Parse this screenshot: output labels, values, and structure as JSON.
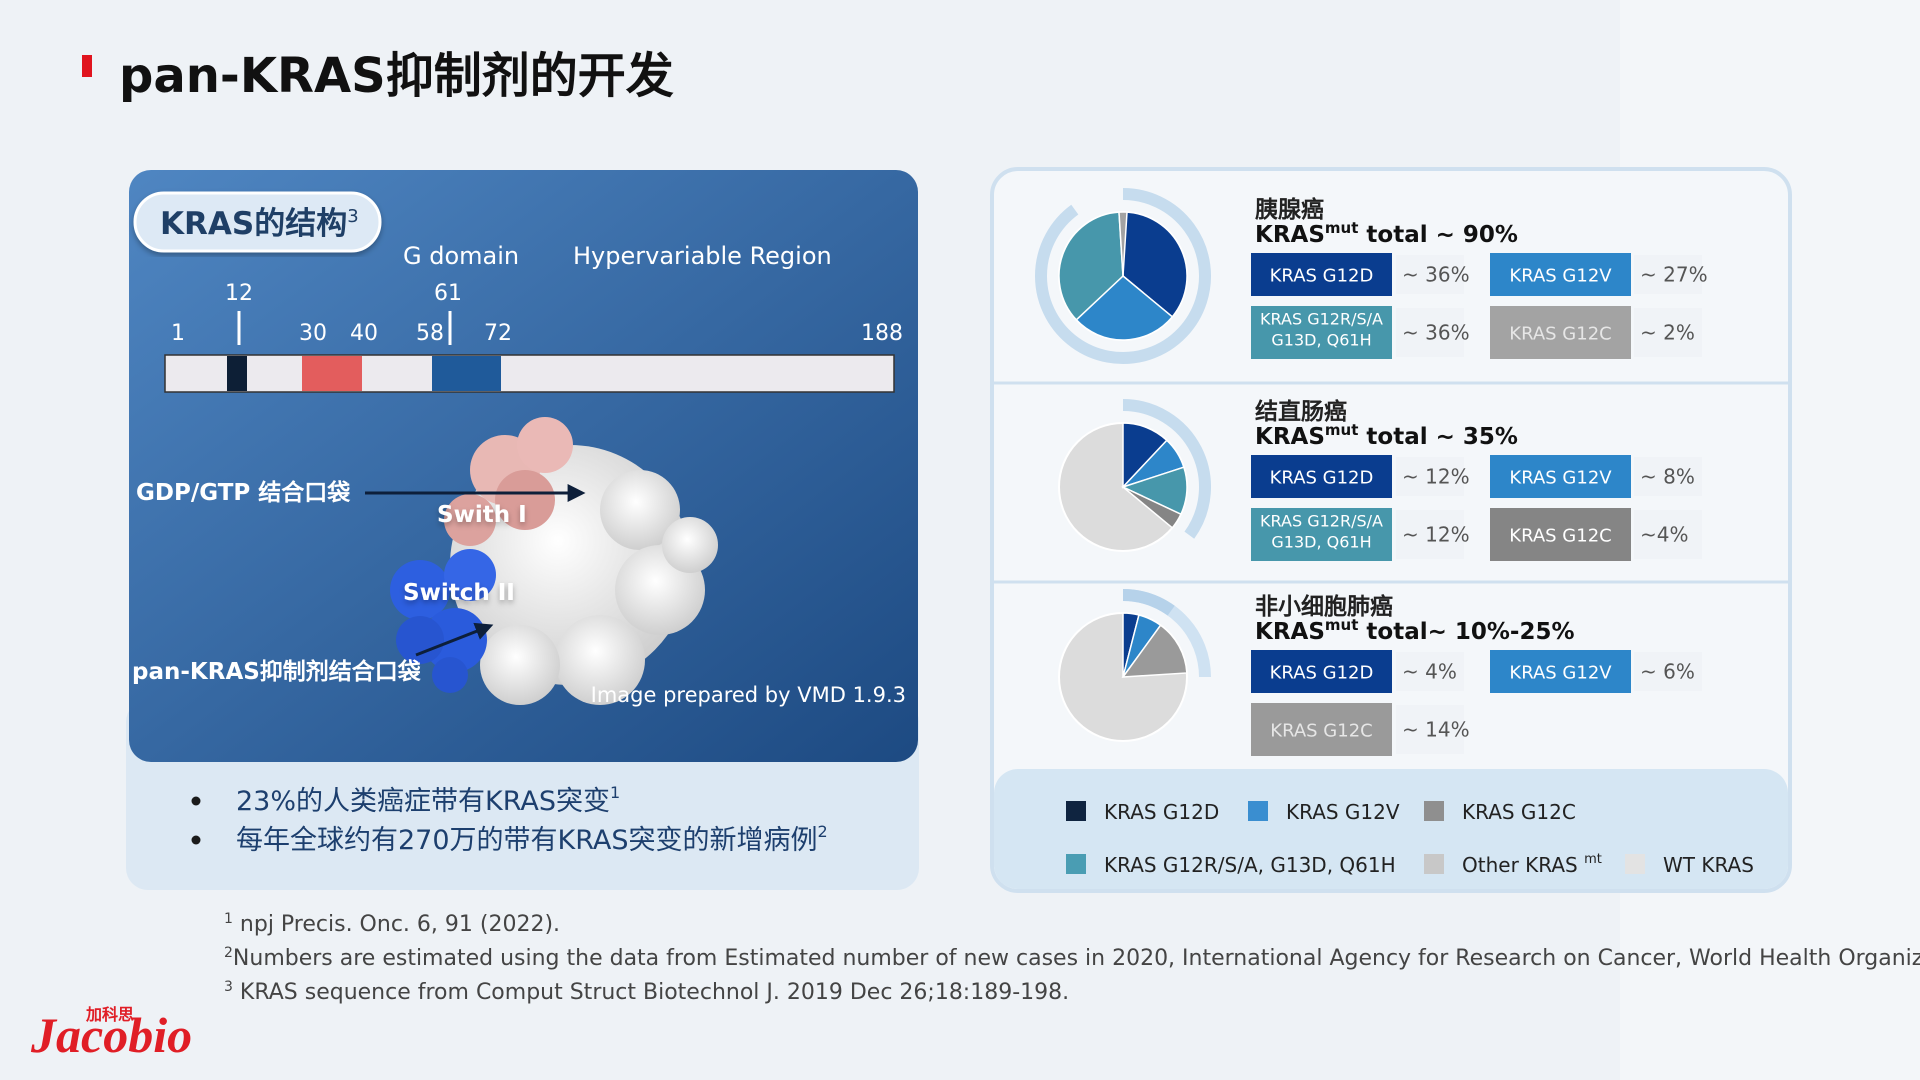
{
  "header": {
    "title": "pan-KRAS抑制剂的开发"
  },
  "structure_panel": {
    "title": "KRAS的结构",
    "title_sup": "3",
    "domain_labels": [
      "G domain",
      "Hypervariable Region"
    ],
    "residues": [
      "1",
      "12",
      "30",
      "40",
      "58",
      "61",
      "72",
      "188"
    ],
    "image_labels": {
      "gdp_pocket": "GDP/GTP 结合口袋",
      "switch1": "Swith I",
      "switch2": "Switch II",
      "pan_pocket": "pan-KRAS抑制剂结合口袋",
      "credit": "Image prepared by VMD 1.9.3"
    },
    "bullets": [
      {
        "text": "23%的人类癌症带有KRAS突变",
        "sup": "1"
      },
      {
        "text": "每年全球约有270万的带有KRAS突变的新增病例",
        "sup": "2"
      }
    ]
  },
  "cancers": [
    {
      "name": "胰腺癌",
      "total_prefix": "KRAS",
      "total_sup": "mut",
      "total_word": " total",
      "total_label": " ~ 90%",
      "total": 90,
      "variants": [
        {
          "name": [
            "KRAS G12D"
          ],
          "value": 36,
          "label": "~ 36%",
          "color": "#0a3d8f"
        },
        {
          "name": [
            "KRAS G12V"
          ],
          "value": 27,
          "label": "~ 27%",
          "color": "#2d86c9"
        },
        {
          "name": [
            "KRAS G12R/S/A",
            "G13D, Q61H"
          ],
          "value": 36,
          "label": "~ 36%",
          "color": "#4797ab"
        },
        {
          "name": [
            "KRAS G12C"
          ],
          "value": 2,
          "label": "~ 2%",
          "color": "#a3a3a3"
        }
      ]
    },
    {
      "name": "结直肠癌",
      "total_prefix": "KRAS",
      "total_sup": "mut",
      "total_word": " total",
      "total_label": " ~ 35%",
      "total": 35,
      "variants": [
        {
          "name": [
            "KRAS G12D"
          ],
          "value": 12,
          "label": "~ 12%",
          "color": "#0a3d8f"
        },
        {
          "name": [
            "KRAS G12V"
          ],
          "value": 8,
          "label": "~ 8%",
          "color": "#2d86c9"
        },
        {
          "name": [
            "KRAS G12R/S/A",
            "G13D, Q61H"
          ],
          "value": 12,
          "label": "~ 12%",
          "color": "#4797ab"
        },
        {
          "name": [
            "KRAS G12C"
          ],
          "value": 4,
          "label": "~4%",
          "color": "#858585"
        }
      ]
    },
    {
      "name": "非小细胞肺癌",
      "total_prefix": "KRAS",
      "total_sup": "mut",
      "total_word": " total",
      "total_label": "~ 10%-25%",
      "total": [
        10,
        25
      ],
      "variants": [
        {
          "name": [
            "KRAS G12D"
          ],
          "value": 4,
          "label": "~ 4%",
          "color": "#0a3d8f"
        },
        {
          "name": [
            "KRAS G12V"
          ],
          "value": 6,
          "label": "~ 6%",
          "color": "#2d86c9"
        },
        {
          "name": [
            "KRAS G12C"
          ],
          "value": 14,
          "label": "~ 14%",
          "color": "#9a9a9a"
        }
      ]
    }
  ],
  "legend": [
    {
      "name": "KRAS G12D",
      "color": "#0f2440"
    },
    {
      "name": "KRAS G12V",
      "color": "#3a8ed0"
    },
    {
      "name": "KRAS G12C",
      "color": "#8f8f8f"
    },
    {
      "name": "KRAS G12R/S/A, G13D, Q61H",
      "color": "#4a9db3"
    },
    {
      "name": "Other KRAS ",
      "sup": "mt",
      "color": "#c8c8c8"
    },
    {
      "name": "WT KRAS",
      "color": "#e3e3e3"
    }
  ],
  "footnotes": [
    {
      "sup": "1",
      "text": " npj Precis. Onc. 6, 91 (2022)."
    },
    {
      "sup": "2",
      "text": "Numbers are estimated using the data from Estimated number of new cases in 2020, International Agency for Research on Cancer, World Health Organization"
    },
    {
      "sup": "3",
      "text": " KRAS sequence from Comput Struct Biotechnol J. 2019 Dec 26;18:189-198."
    }
  ],
  "logo": {
    "cn": "加科思",
    "text": "Jacobio"
  }
}
